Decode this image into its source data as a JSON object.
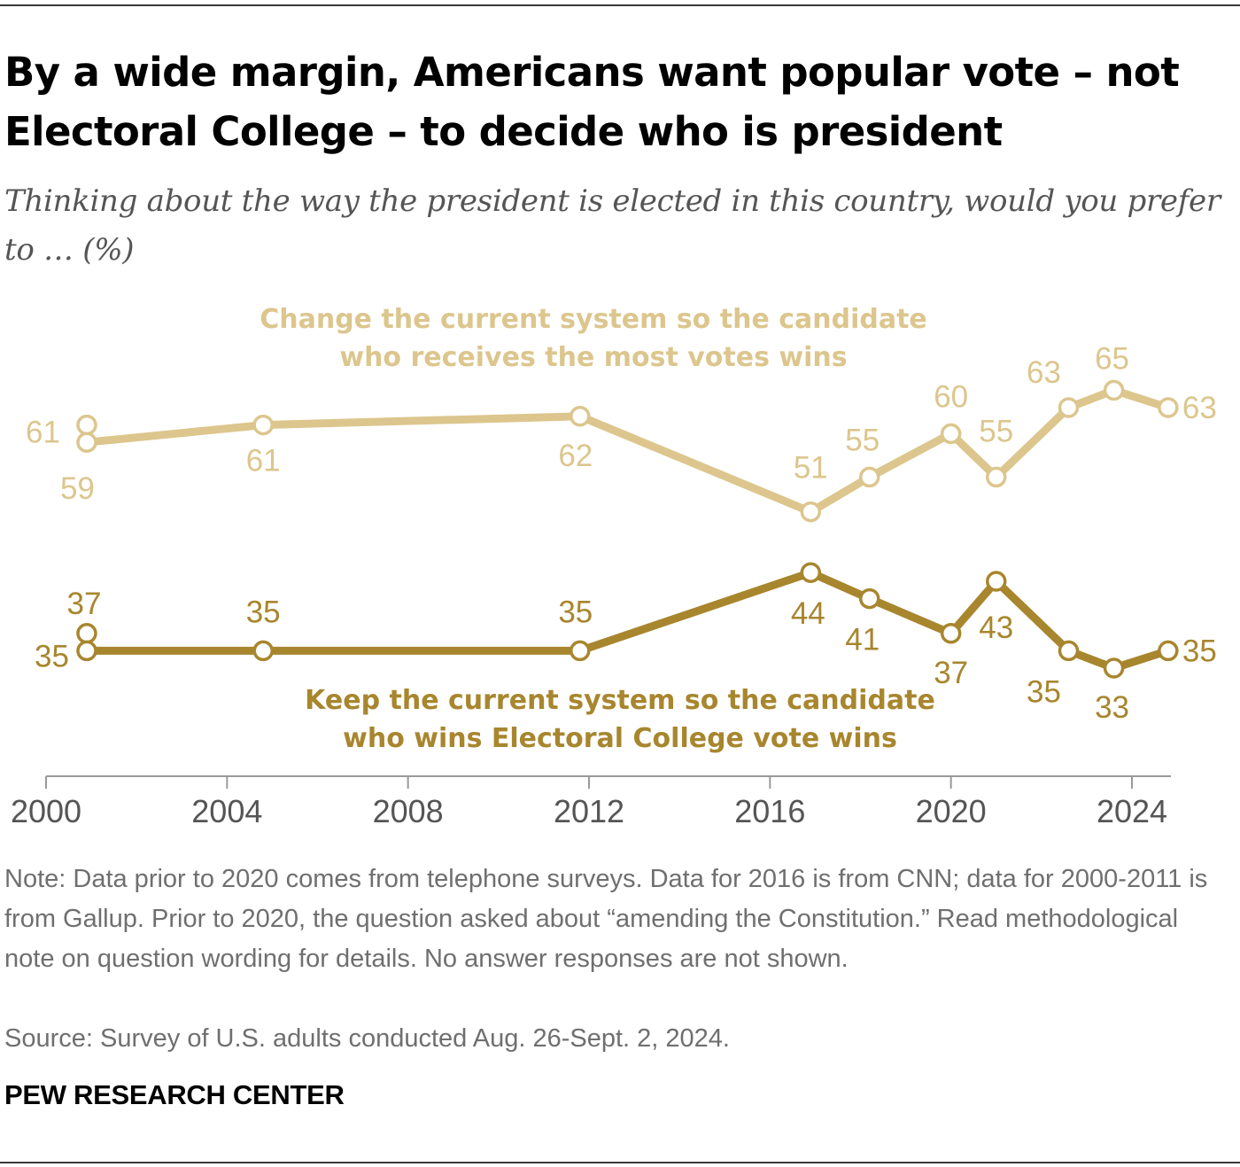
{
  "header": {
    "title": "By a wide margin, Americans want popular vote – not Electoral College – to decide who is president",
    "subtitle": "Thinking about the way the president is elected in this country, would you prefer to … (%)"
  },
  "footer": {
    "note": "Note: Data prior to 2020 comes from telephone surveys. Data for 2016 is from CNN; data for 2000-2011 is from Gallup. Prior to 2020, the question asked about “amending the Constitution.” Read methodological note on question wording for details. No answer responses are not shown.",
    "source": "Source: Survey of U.S. adults conducted Aug. 26-Sept. 2, 2024.",
    "brand": "PEW RESEARCH CENTER"
  },
  "chart_data": {
    "type": "line",
    "xlim": [
      2000,
      2025
    ],
    "ylim": [
      25,
      70
    ],
    "x_ticks": [
      "2000",
      "2004",
      "2008",
      "2012",
      "2016",
      "2020",
      "2024"
    ],
    "x_tick_values": [
      2000,
      2004,
      2008,
      2012,
      2016,
      2020,
      2024
    ],
    "grid": false,
    "legend": "inline labels",
    "series": [
      {
        "name": "Change the current system so the candidate who receives the most votes wins",
        "name_lines": [
          "Change the current system so the candidate",
          "who receives the most votes wins"
        ],
        "color": "#dcc68d",
        "points": [
          {
            "x": 2000.9,
            "y": 61,
            "label": "61"
          },
          {
            "x": 2000.9,
            "y": 59,
            "label": "59"
          },
          {
            "x": 2004.8,
            "y": 61,
            "label": "61"
          },
          {
            "x": 2011.8,
            "y": 62,
            "label": "62"
          },
          {
            "x": 2016.9,
            "y": 51,
            "label": "51"
          },
          {
            "x": 2018.2,
            "y": 55,
            "label": "55"
          },
          {
            "x": 2020.0,
            "y": 60,
            "label": "60"
          },
          {
            "x": 2021.0,
            "y": 55,
            "label": "55"
          },
          {
            "x": 2022.6,
            "y": 63,
            "label": "63"
          },
          {
            "x": 2023.6,
            "y": 65,
            "label": "65"
          },
          {
            "x": 2024.8,
            "y": 63,
            "label": "63"
          }
        ]
      },
      {
        "name": "Keep the current system so the candidate who wins Electoral College vote wins",
        "name_lines": [
          "Keep the current system so the candidate",
          "who wins Electoral College vote wins"
        ],
        "color": "#a8862e",
        "points": [
          {
            "x": 2000.9,
            "y": 37,
            "label": "37"
          },
          {
            "x": 2000.9,
            "y": 35,
            "label": "35"
          },
          {
            "x": 2004.8,
            "y": 35,
            "label": "35"
          },
          {
            "x": 2011.8,
            "y": 35,
            "label": "35"
          },
          {
            "x": 2016.9,
            "y": 44,
            "label": "44"
          },
          {
            "x": 2018.2,
            "y": 41,
            "label": "41"
          },
          {
            "x": 2020.0,
            "y": 37,
            "label": "37"
          },
          {
            "x": 2021.0,
            "y": 43,
            "label": "43"
          },
          {
            "x": 2022.6,
            "y": 35,
            "label": "35"
          },
          {
            "x": 2023.6,
            "y": 33,
            "label": "33"
          },
          {
            "x": 2024.8,
            "y": 35,
            "label": "35"
          }
        ]
      }
    ]
  }
}
